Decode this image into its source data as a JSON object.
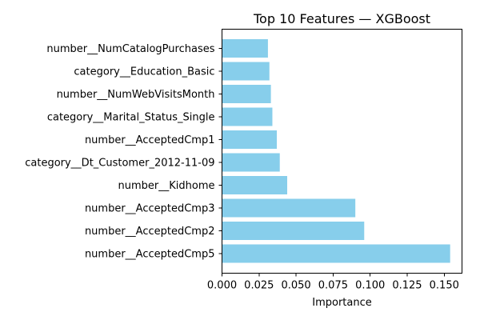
{
  "chart_data": {
    "type": "bar",
    "orientation": "horizontal",
    "title": "Top 10 Features — XGBoost",
    "xlabel": "Importance",
    "ylabel": "",
    "xlim": [
      0,
      0.162
    ],
    "x_ticks": [
      "0.000",
      "0.025",
      "0.050",
      "0.075",
      "0.100",
      "0.125",
      "0.150"
    ],
    "categories": [
      "number__AcceptedCmp5",
      "number__AcceptedCmp2",
      "number__AcceptedCmp3",
      "number__Kidhome",
      "category__Dt_Customer_2012-11-09",
      "number__AcceptedCmp1",
      "category__Marital_Status_Single",
      "number__NumWebVisitsMonth",
      "category__Education_Basic",
      "number__NumCatalogPurchases"
    ],
    "values": [
      0.154,
      0.096,
      0.09,
      0.044,
      0.039,
      0.037,
      0.034,
      0.033,
      0.032,
      0.031
    ],
    "bar_color": "#87CEEB",
    "grid": false,
    "legend": "none"
  }
}
